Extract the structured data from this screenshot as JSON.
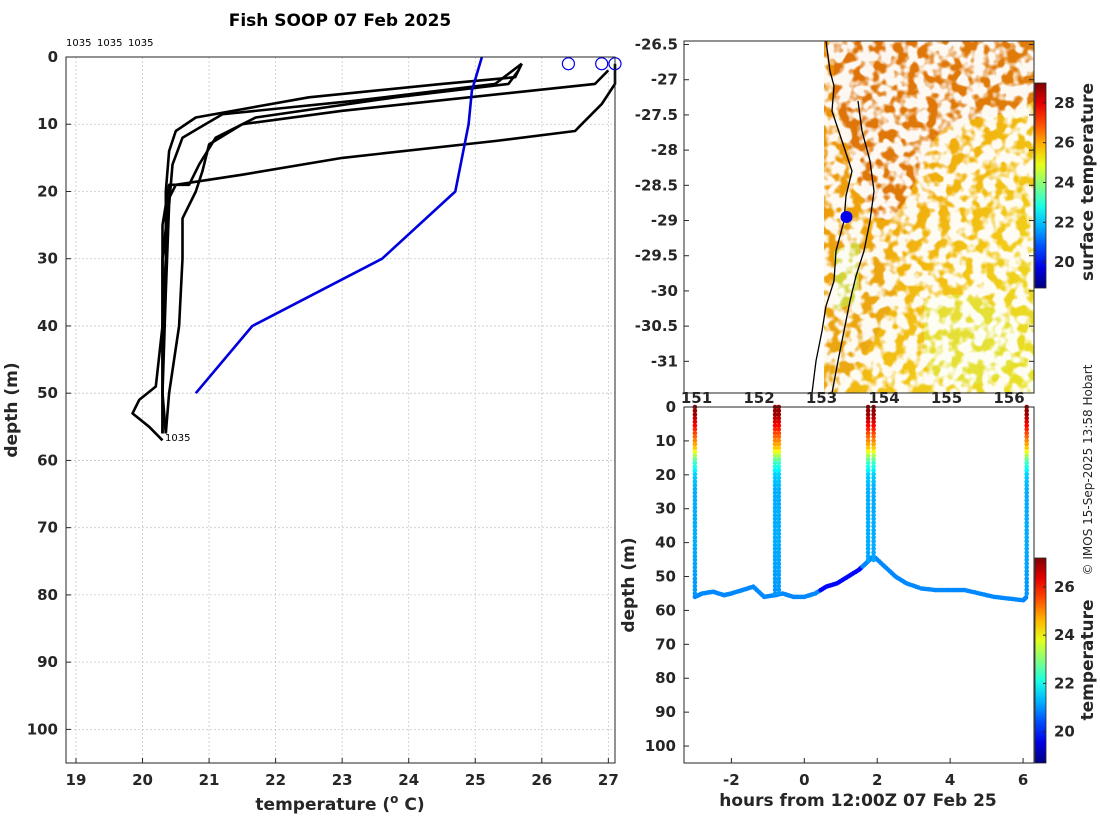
{
  "title": "Fish SOOP 07 Feb 2025",
  "copyright": "© IMOS 15-Sep-2025 13:58 Hobart",
  "profile_labels": [
    "1035",
    "1035",
    "1035"
  ],
  "chart_data": [
    {
      "type": "line",
      "panel": "profile",
      "xlabel": "temperature (° C)",
      "xlabel_main": "temperature (",
      "xlabel_sup": "o",
      "xlabel_end": " C)",
      "ylabel": "depth (m)",
      "xlim": [
        18.85,
        27.1
      ],
      "ylim": [
        105,
        0
      ],
      "y_reversed": true,
      "xticks": [
        19,
        20,
        21,
        22,
        23,
        24,
        25,
        26,
        27
      ],
      "yticks": [
        0,
        10,
        20,
        30,
        40,
        50,
        60,
        70,
        80,
        90,
        100
      ],
      "grid": true,
      "series": [
        {
          "color": "#000000",
          "points": [
            [
              25.7,
              1
            ],
            [
              25.6,
              3
            ],
            [
              24.5,
              4
            ],
            [
              22.5,
              6
            ],
            [
              20.8,
              9
            ],
            [
              20.5,
              11
            ],
            [
              20.4,
              14
            ],
            [
              20.35,
              20
            ],
            [
              20.35,
              30
            ],
            [
              20.3,
              40
            ],
            [
              20.3,
              50
            ],
            [
              20.35,
              56
            ]
          ]
        },
        {
          "color": "#000000",
          "points": [
            [
              25.65,
              2
            ],
            [
              25.5,
              4
            ],
            [
              23.8,
              6
            ],
            [
              21.7,
              9
            ],
            [
              21.1,
              12
            ],
            [
              20.85,
              16
            ],
            [
              20.7,
              19
            ],
            [
              20.4,
              19
            ],
            [
              20.3,
              25
            ],
            [
              20.3,
              40
            ],
            [
              20.3,
              50
            ],
            [
              20.3,
              56
            ]
          ]
        },
        {
          "color": "#000000",
          "points": [
            [
              25.7,
              1
            ],
            [
              25.3,
              4
            ],
            [
              23.2,
              6.5
            ],
            [
              21.2,
              8.5
            ],
            [
              20.6,
              12
            ],
            [
              20.45,
              16
            ],
            [
              20.4,
              22
            ],
            [
              20.35,
              35
            ],
            [
              20.3,
              50
            ],
            [
              20.3,
              56
            ]
          ]
        },
        {
          "color": "#000000",
          "points": [
            [
              27.0,
              2
            ],
            [
              26.8,
              4
            ],
            [
              23.0,
              8
            ],
            [
              21.5,
              10
            ],
            [
              21.0,
              13
            ],
            [
              20.9,
              17
            ],
            [
              20.8,
              20
            ],
            [
              20.6,
              24
            ],
            [
              20.6,
              30
            ],
            [
              20.55,
              40
            ],
            [
              20.4,
              50
            ],
            [
              20.35,
              56
            ]
          ]
        },
        {
          "color": "#000000",
          "points": [
            [
              27.1,
              1
            ],
            [
              27.1,
              4
            ],
            [
              26.9,
              7
            ],
            [
              26.6,
              10
            ],
            [
              26.5,
              11
            ],
            [
              25.3,
              12.5
            ],
            [
              23.0,
              15
            ],
            [
              21.5,
              17.5
            ],
            [
              20.5,
              19
            ],
            [
              20.4,
              21
            ],
            [
              20.3,
              30
            ],
            [
              20.3,
              40
            ],
            [
              20.2,
              49
            ],
            [
              19.95,
              51
            ],
            [
              19.85,
              53
            ],
            [
              20.1,
              55
            ],
            [
              20.3,
              57
            ]
          ]
        },
        {
          "color": "#0000dd",
          "points": [
            [
              25.1,
              0
            ],
            [
              24.95,
              5
            ],
            [
              24.9,
              10
            ],
            [
              24.7,
              20
            ],
            [
              23.6,
              30
            ],
            [
              21.65,
              40
            ],
            [
              20.8,
              50
            ]
          ]
        }
      ],
      "markers": [
        [
          26.4,
          1
        ],
        [
          26.9,
          1
        ],
        [
          27.1,
          1
        ]
      ],
      "end_label": "1035"
    },
    {
      "type": "heatmap",
      "panel": "map",
      "colorbar_label": "surface temperature",
      "clim": [
        18.7,
        29
      ],
      "colorbar_ticks": [
        20,
        22,
        24,
        26,
        28
      ],
      "xlim": [
        150.8,
        156.4
      ],
      "ylim": [
        -31.45,
        -26.45
      ],
      "xticks": [
        151,
        152,
        153,
        154,
        155,
        156
      ],
      "xtick_labels": [
        "151",
        "152",
        "153",
        "154",
        "155",
        "156"
      ],
      "yticks": [
        -26.5,
        -27,
        -27.5,
        -28,
        -28.5,
        -29,
        -29.5,
        -30,
        -30.5,
        -31
      ],
      "ytick_labels": [
        "-26.5",
        "-27",
        "-27.5",
        "-28",
        "-28.5",
        "-29",
        "-29.5",
        "-30",
        "-30.5",
        "-31"
      ],
      "vessel_position": [
        153.4,
        -28.95
      ],
      "vessel_color": "#0000ee"
    },
    {
      "type": "scatter",
      "panel": "time-depth",
      "xlabel": "hours from 12:00Z 07 Feb 25",
      "ylabel": "depth (m)",
      "colorbar_label": "temperature",
      "clim": [
        18.7,
        27.2
      ],
      "colorbar_ticks": [
        20,
        22,
        24,
        26
      ],
      "xlim": [
        -3.3,
        6.3
      ],
      "ylim": [
        105,
        0
      ],
      "xticks": [
        -2,
        0,
        2,
        4,
        6
      ],
      "yticks": [
        0,
        10,
        20,
        30,
        40,
        50,
        60,
        70,
        80,
        90,
        100
      ],
      "casts": [
        -3.0,
        -0.8,
        -0.7,
        1.75,
        1.9,
        6.1
      ],
      "bottom_track": [
        [
          -3.0,
          56
        ],
        [
          -2.8,
          55
        ],
        [
          -2.5,
          54.5
        ],
        [
          -2.2,
          55.5
        ],
        [
          -2.0,
          55
        ],
        [
          -1.7,
          54
        ],
        [
          -1.4,
          53
        ],
        [
          -1.1,
          56
        ],
        [
          -0.8,
          55.5
        ],
        [
          -0.6,
          55
        ],
        [
          -0.3,
          56
        ],
        [
          0.0,
          56
        ],
        [
          0.3,
          55
        ],
        [
          0.6,
          53
        ],
        [
          0.9,
          52
        ],
        [
          1.2,
          50
        ],
        [
          1.5,
          48
        ],
        [
          1.7,
          46
        ],
        [
          1.9,
          44
        ],
        [
          2.2,
          47
        ],
        [
          2.5,
          50
        ],
        [
          2.8,
          52
        ],
        [
          3.2,
          53.5
        ],
        [
          3.6,
          54
        ],
        [
          4.0,
          54
        ],
        [
          4.4,
          54
        ],
        [
          4.8,
          55
        ],
        [
          5.2,
          56
        ],
        [
          5.6,
          56.5
        ],
        [
          6.0,
          57
        ],
        [
          6.1,
          56
        ]
      ],
      "surface_profile": [
        [
          0,
          27
        ],
        [
          2,
          27
        ],
        [
          4,
          26.5
        ],
        [
          6,
          26
        ],
        [
          8,
          25.5
        ],
        [
          10,
          25
        ],
        [
          12,
          24.5
        ],
        [
          14,
          23.5
        ],
        [
          16,
          22.5
        ],
        [
          18,
          22
        ],
        [
          20,
          21.5
        ],
        [
          25,
          21.2
        ],
        [
          40,
          21.2
        ],
        [
          57,
          21.0
        ]
      ]
    }
  ]
}
